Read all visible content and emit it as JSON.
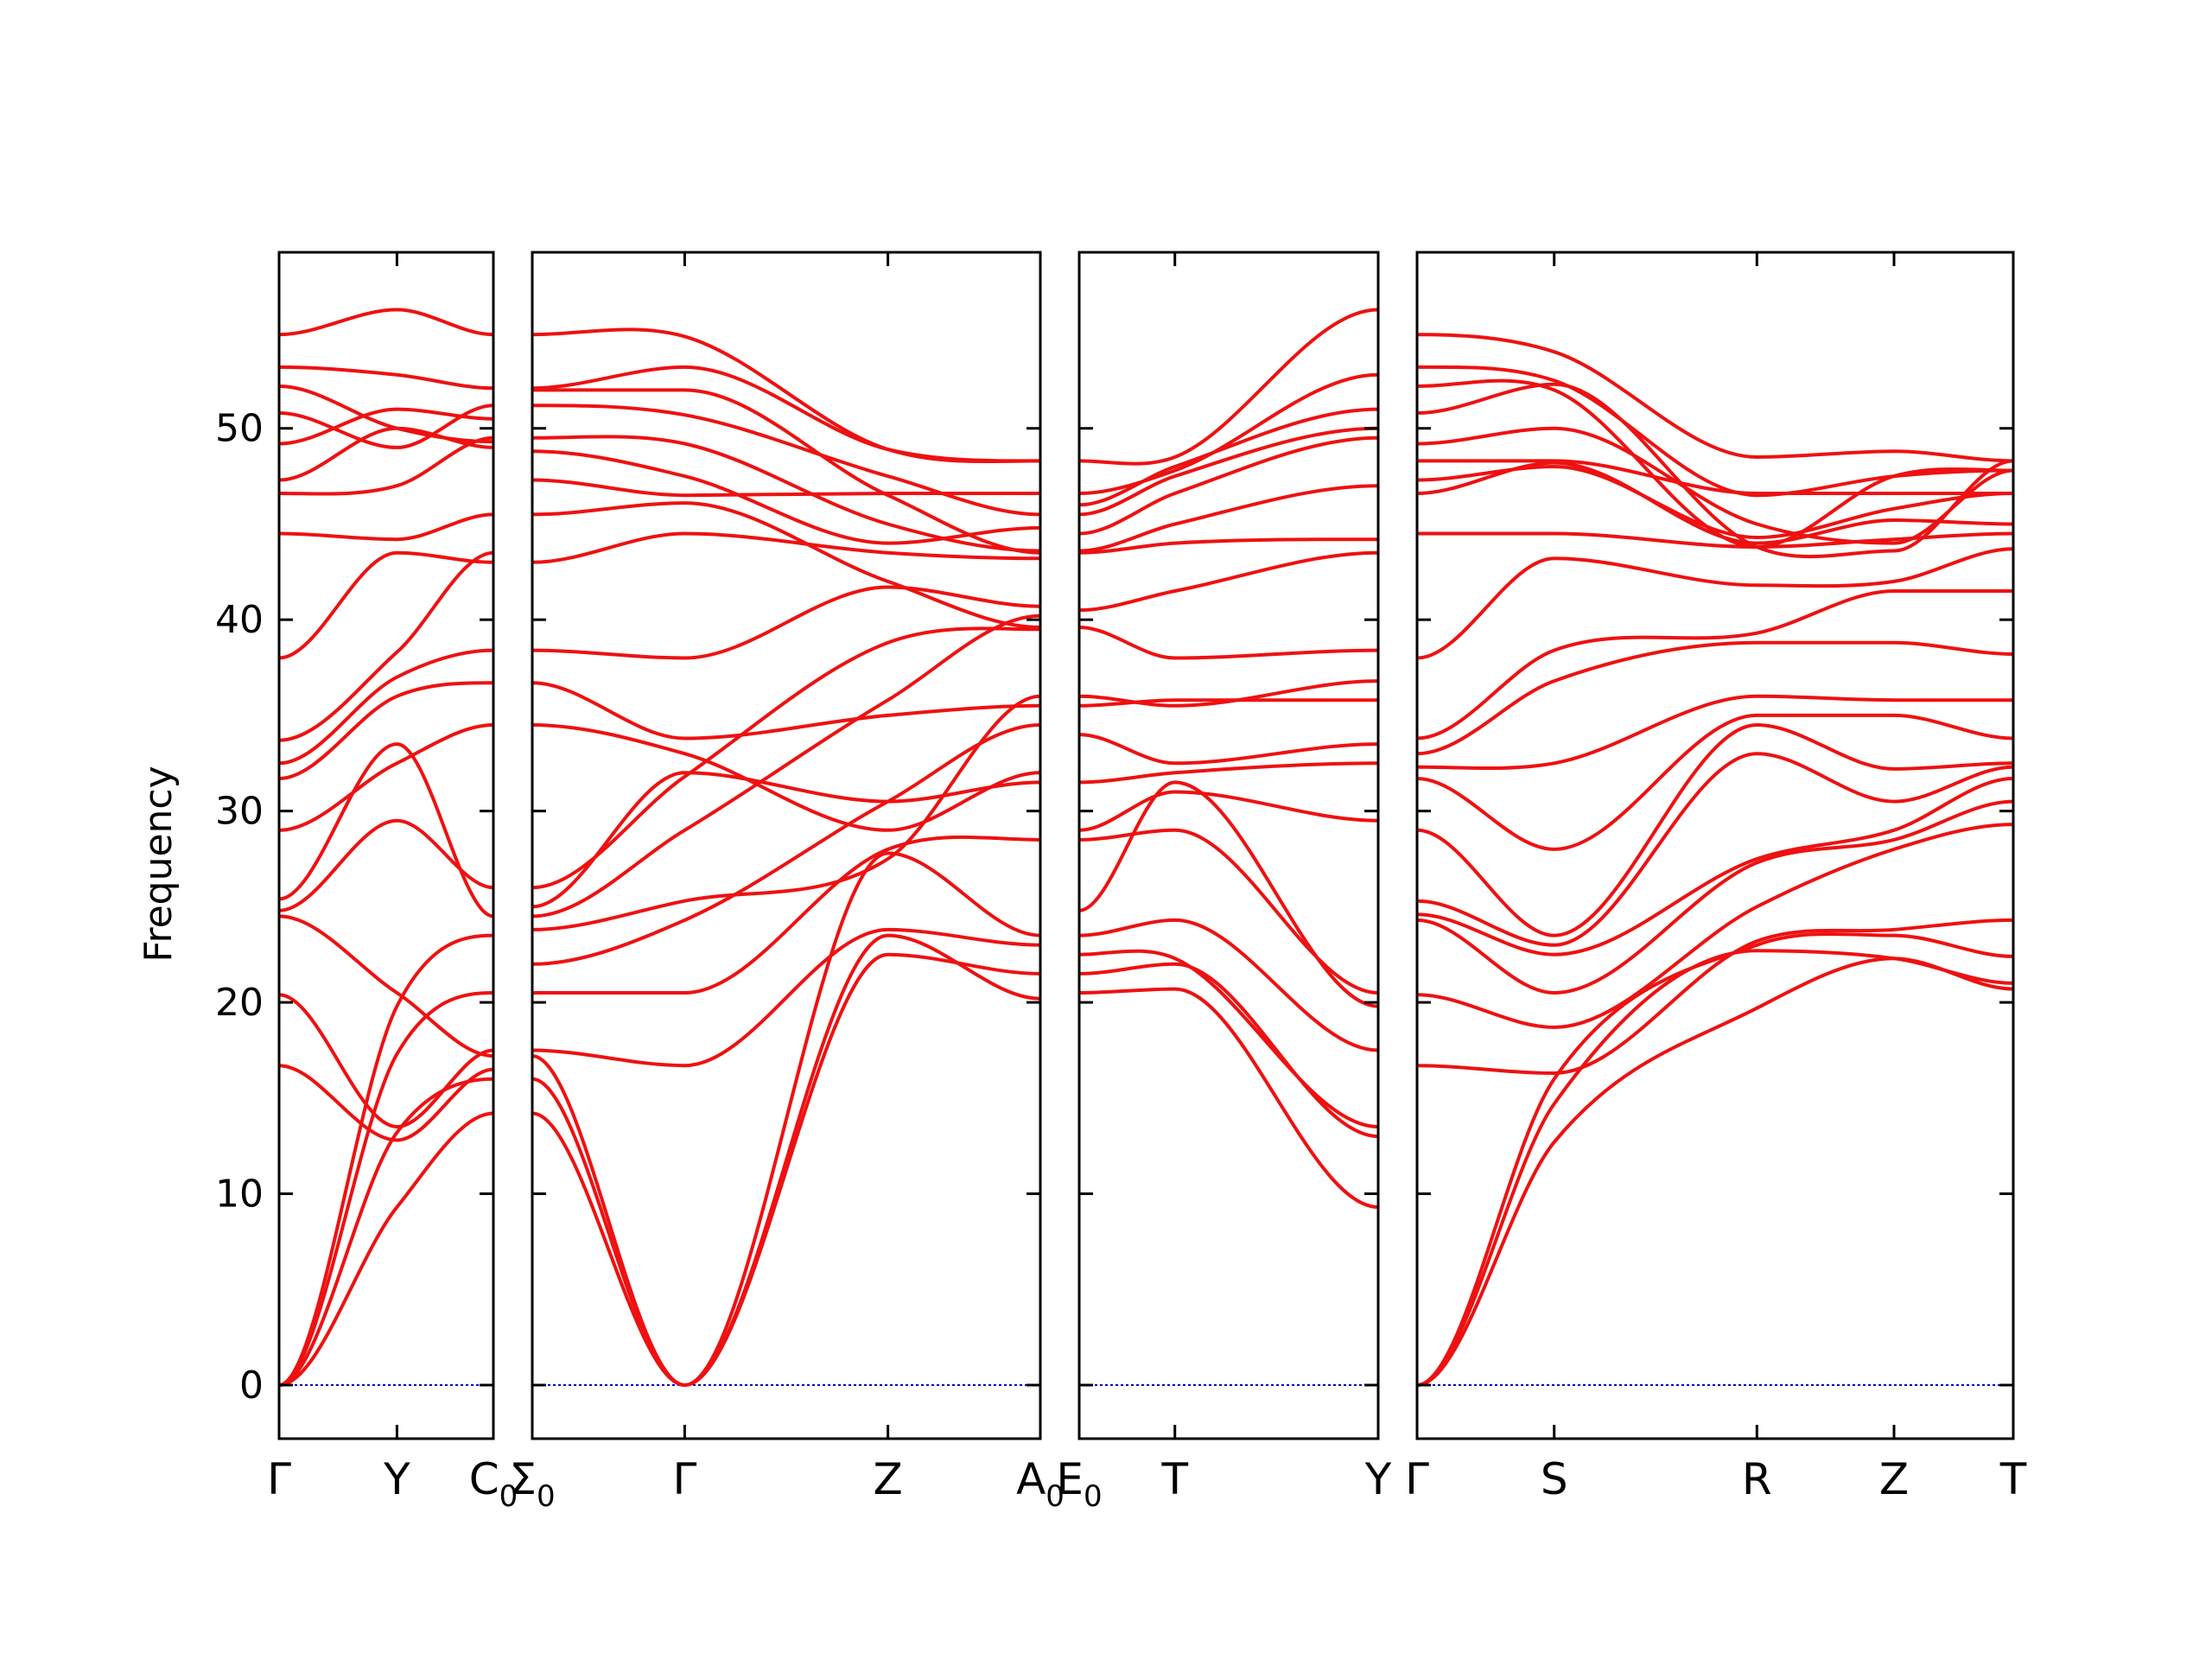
{
  "chart_data": {
    "type": "line",
    "title": "",
    "ylabel": "Frequency",
    "ylim": [
      -2.8,
      59.2
    ],
    "yticks": [
      0,
      10,
      20,
      30,
      40,
      50
    ],
    "grid": false,
    "line_color": "#ee1111",
    "zero_line_color": "#0000cc",
    "panels": [
      {
        "id": "p1",
        "xticks": [
          {
            "pos": 0.0,
            "label": "Γ",
            "sub": ""
          },
          {
            "pos": 0.55,
            "label": "Y",
            "sub": ""
          },
          {
            "pos": 1.0,
            "label": "C",
            "sub": "0"
          }
        ],
        "bands": [
          [
            0,
            9.3,
            14.2
          ],
          [
            0,
            13.2,
            16.0
          ],
          [
            0,
            17.3,
            20.5
          ],
          [
            0,
            19.8,
            23.5
          ],
          [
            16.7,
            12.8,
            16.5
          ],
          [
            20.4,
            13.5,
            17.5
          ],
          [
            24.8,
            29.5,
            26.0
          ],
          [
            24.5,
            20.5,
            17.2
          ],
          [
            25.4,
            33.5,
            24.5
          ],
          [
            29.0,
            32.5,
            34.5
          ],
          [
            31.7,
            36.0,
            36.7
          ],
          [
            32.5,
            37.0,
            38.4
          ],
          [
            33.7,
            38.3,
            43.5
          ],
          [
            38.0,
            43.5,
            43.0
          ],
          [
            44.5,
            44.2,
            45.5
          ],
          [
            46.6,
            47.0,
            49.5
          ],
          [
            47.3,
            50.0,
            49.0
          ],
          [
            49.2,
            51.0,
            50.5
          ],
          [
            50.8,
            49.0,
            51.2
          ],
          [
            52.2,
            50.0,
            49.3
          ],
          [
            53.2,
            52.8,
            52.1
          ],
          [
            54.9,
            56.2,
            54.9
          ]
        ]
      },
      {
        "id": "p2",
        "xticks": [
          {
            "pos": 0.0,
            "label": "Σ",
            "sub": "0"
          },
          {
            "pos": 0.3,
            "label": "Γ",
            "sub": ""
          },
          {
            "pos": 0.7,
            "label": "Z",
            "sub": ""
          },
          {
            "pos": 1.0,
            "label": "A",
            "sub": "0"
          }
        ],
        "bands": [
          [
            14.2,
            0,
            22.5,
            21.5
          ],
          [
            16.0,
            0,
            23.5,
            20.2
          ],
          [
            17.2,
            0,
            27.8,
            23.5
          ],
          [
            17.5,
            16.7,
            23.8,
            23.0
          ],
          [
            20.5,
            20.5,
            28.0,
            28.5
          ],
          [
            22.0,
            24.3,
            30.5,
            34.5
          ],
          [
            23.8,
            25.3,
            27.5,
            36.0
          ],
          [
            24.5,
            29.0,
            35.8,
            40.2
          ],
          [
            26.0,
            31.8,
            38.8,
            39.5
          ],
          [
            25.0,
            32.0,
            30.5,
            31.5
          ],
          [
            34.5,
            33.0,
            29.0,
            32.0
          ],
          [
            36.7,
            33.8,
            35.0,
            35.5
          ],
          [
            38.4,
            38.0,
            41.7,
            40.7
          ],
          [
            43.0,
            44.5,
            43.5,
            43.2
          ],
          [
            45.5,
            46.1,
            42.0,
            39.6
          ],
          [
            47.3,
            46.5,
            46.6,
            46.6
          ],
          [
            48.8,
            47.5,
            44.0,
            44.8
          ],
          [
            49.5,
            49.2,
            45.0,
            43.6
          ],
          [
            51.2,
            50.7,
            47.5,
            45.5
          ],
          [
            52.0,
            52.0,
            46.5,
            43.5
          ],
          [
            52.1,
            53.2,
            48.9,
            48.3
          ],
          [
            54.9,
            54.8,
            48.9,
            48.3
          ]
        ]
      },
      {
        "id": "p3",
        "xticks": [
          {
            "pos": 0.0,
            "label": "E",
            "sub": "0"
          },
          {
            "pos": 0.32,
            "label": "T",
            "sub": ""
          },
          {
            "pos": 1.0,
            "label": "Y",
            "sub": ""
          }
        ],
        "bands": [
          [
            20.5,
            20.7,
            9.3
          ],
          [
            21.5,
            22.0,
            13.0
          ],
          [
            22.5,
            22.3,
            13.5
          ],
          [
            23.5,
            24.3,
            17.5
          ],
          [
            24.8,
            31.5,
            19.8
          ],
          [
            28.5,
            29.0,
            20.5
          ],
          [
            29.0,
            31.0,
            29.5
          ],
          [
            31.5,
            32.0,
            32.5
          ],
          [
            34.0,
            32.5,
            33.5
          ],
          [
            35.5,
            35.8,
            35.8
          ],
          [
            36.0,
            35.5,
            36.8
          ],
          [
            39.6,
            38.0,
            38.4
          ],
          [
            40.5,
            41.5,
            43.5
          ],
          [
            43.5,
            44.0,
            44.2
          ],
          [
            43.6,
            45.0,
            47.0
          ],
          [
            44.5,
            46.6,
            49.5
          ],
          [
            45.5,
            47.5,
            50.0
          ],
          [
            46.0,
            48.0,
            51.0
          ],
          [
            46.6,
            47.8,
            52.8
          ],
          [
            48.3,
            48.5,
            56.2
          ]
        ]
      },
      {
        "id": "p4",
        "xticks": [
          {
            "pos": 0.0,
            "label": "Γ",
            "sub": ""
          },
          {
            "pos": 0.23,
            "label": "S",
            "sub": ""
          },
          {
            "pos": 0.57,
            "label": "R",
            "sub": ""
          },
          {
            "pos": 0.8,
            "label": "Z",
            "sub": ""
          },
          {
            "pos": 1.0,
            "label": "T",
            "sub": ""
          }
        ],
        "bands": [
          [
            0,
            12.7,
            19.7,
            22.3,
            20.7
          ],
          [
            0,
            14.7,
            22.7,
            22.3,
            21.0
          ],
          [
            0,
            16.0,
            23.0,
            23.5,
            22.4
          ],
          [
            16.7,
            16.3,
            23.2,
            23.8,
            24.3
          ],
          [
            20.4,
            18.7,
            25.0,
            28.0,
            29.3
          ],
          [
            24.3,
            20.5,
            27.3,
            28.5,
            30.5
          ],
          [
            24.6,
            22.5,
            27.5,
            29.0,
            31.7
          ],
          [
            25.3,
            23.0,
            33.0,
            30.5,
            32.3
          ],
          [
            29.0,
            23.5,
            34.5,
            32.2,
            32.5
          ],
          [
            31.7,
            28.0,
            35.0,
            35.0,
            33.8
          ],
          [
            32.3,
            32.5,
            36.0,
            35.8,
            35.8
          ],
          [
            33.0,
            36.8,
            38.8,
            38.8,
            38.2
          ],
          [
            33.8,
            38.4,
            39.3,
            41.5,
            41.5
          ],
          [
            38.0,
            43.2,
            41.8,
            42.0,
            43.7
          ],
          [
            44.5,
            44.5,
            43.8,
            44.2,
            44.5
          ],
          [
            46.6,
            48.2,
            44.0,
            45.2,
            45.0
          ],
          [
            47.3,
            48.0,
            44.3,
            45.8,
            46.6
          ],
          [
            48.3,
            48.3,
            46.6,
            46.6,
            46.6
          ],
          [
            49.2,
            50.0,
            45.0,
            44.0,
            47.8
          ],
          [
            50.8,
            52.3,
            43.8,
            43.6,
            48.3
          ],
          [
            52.2,
            52.0,
            43.8,
            47.5,
            47.8
          ],
          [
            53.2,
            52.5,
            46.5,
            47.5,
            47.8
          ],
          [
            54.9,
            54.0,
            48.5,
            48.8,
            48.3
          ]
        ]
      }
    ]
  }
}
